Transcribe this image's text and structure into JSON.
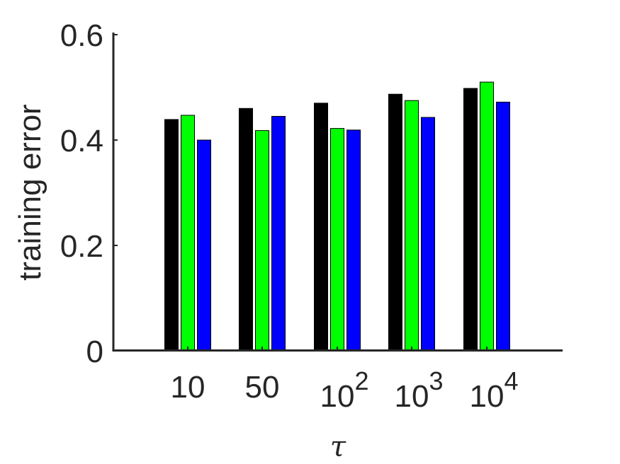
{
  "chart_data": {
    "type": "bar",
    "ylabel": "training error",
    "xlabel": "τ",
    "ylim": [
      0,
      0.6
    ],
    "yticks": [
      {
        "value": 0,
        "label": "0"
      },
      {
        "value": 0.2,
        "label": "0.2"
      },
      {
        "value": 0.4,
        "label": "0.4"
      },
      {
        "value": 0.6,
        "label": "0.6"
      }
    ],
    "categories": [
      {
        "base": "10",
        "exp": ""
      },
      {
        "base": "50",
        "exp": ""
      },
      {
        "base": "10",
        "exp": "2"
      },
      {
        "base": "10",
        "exp": "3"
      },
      {
        "base": "10",
        "exp": "4"
      }
    ],
    "series": [
      {
        "color": "#000000",
        "values": [
          0.439,
          0.46,
          0.47,
          0.487,
          0.498
        ]
      },
      {
        "color": "#00ff00",
        "values": [
          0.447,
          0.418,
          0.422,
          0.475,
          0.51
        ]
      },
      {
        "color": "#0000ff",
        "values": [
          0.4,
          0.445,
          0.419,
          0.443,
          0.472
        ]
      }
    ],
    "grid": false,
    "legend": "none"
  }
}
